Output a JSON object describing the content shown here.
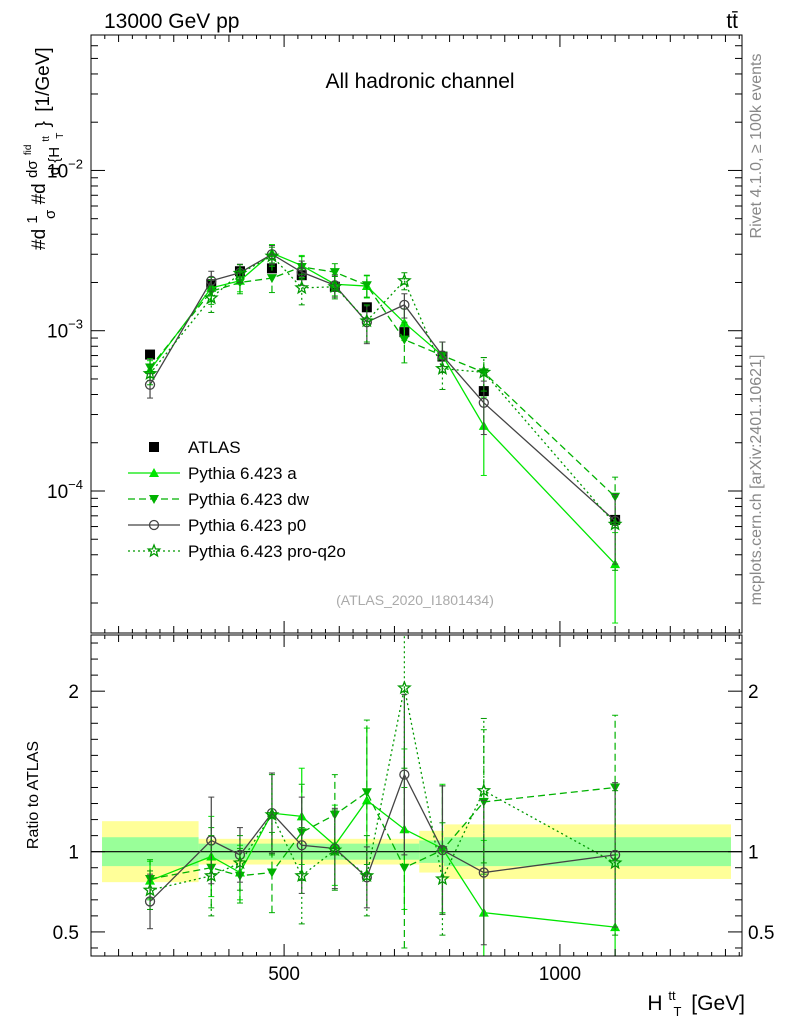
{
  "header": {
    "energy_label": "13000 GeV pp",
    "process_label": "tt̄"
  },
  "side": {
    "rivet_label": "Rivet 4.1.0, ≥ 100k events",
    "mcplots_label": "mcplots.cern.ch [arXiv:2401.10621]"
  },
  "chart_data": [
    {
      "type": "line",
      "panel": "main",
      "title": "All hadronic channel",
      "ylabel_parts": [
        "#d",
        "1",
        "σ",
        "#d",
        "dσ",
        "fid",
        "d {H",
        "tt",
        "T",
        "}",
        "[1/GeV]"
      ],
      "ylabel_text": "#d 1/σ #d dσ^fid / d {H_T^tt} [1/GeV]",
      "yscale": "log",
      "ylim": [
        1.3e-05,
        0.07
      ],
      "xlim": [
        150,
        1330
      ],
      "ytick_labels": [
        {
          "value": 0.01,
          "base": "10",
          "exp": "−2"
        },
        {
          "value": 0.001,
          "base": "10",
          "exp": "−3"
        },
        {
          "value": 0.0001,
          "base": "10",
          "exp": "−4"
        }
      ],
      "watermark": "(ATLAS_2020_I1801434)",
      "x": [
        257,
        368,
        420,
        478,
        532,
        592,
        650,
        718,
        787,
        862,
        1100
      ],
      "series": [
        {
          "name": "ATLAS",
          "style": "data",
          "color": "#000000",
          "values": [
            0.00071,
            0.00195,
            0.00235,
            0.00245,
            0.00222,
            0.00188,
            0.0014,
            0.00098,
            0.00069,
            0.00042,
            6.6e-05
          ]
        },
        {
          "name": "Pythia 6.423 a",
          "style": "solid",
          "marker": "triangle-up",
          "color": "#00e600",
          "values": [
            0.00057,
            0.00185,
            0.00205,
            0.00305,
            0.00255,
            0.00195,
            0.0019,
            0.00112,
            0.0007,
            0.000255,
            3.5e-05
          ],
          "err": [
            8e-05,
            0.0003,
            0.0003,
            0.0004,
            0.0004,
            0.0003,
            0.0003,
            0.00025,
            0.00015,
            0.00013,
            2e-05
          ]
        },
        {
          "name": "Pythia 6.423 dw",
          "style": "dashed",
          "marker": "triangle-down",
          "color": "#00b200",
          "values": [
            0.00059,
            0.00176,
            0.002,
            0.00213,
            0.0025,
            0.00232,
            0.00192,
            0.00088,
            0.0007,
            0.00055,
            9.2e-05
          ],
          "err": [
            8e-05,
            0.0003,
            0.0003,
            0.0004,
            0.0004,
            0.0003,
            0.0003,
            0.00025,
            0.00015,
            0.00013,
            3e-05
          ]
        },
        {
          "name": "Pythia 6.423 p0",
          "style": "solid",
          "marker": "circle-open",
          "color": "#444444",
          "values": [
            0.00046,
            0.00205,
            0.0023,
            0.003,
            0.00232,
            0.00192,
            0.00113,
            0.00145,
            0.0007,
            0.000355,
            6.5e-05
          ],
          "err": [
            8e-05,
            0.0003,
            0.0003,
            0.0004,
            0.0004,
            0.0003,
            0.0003,
            0.00025,
            0.00015,
            0.00013,
            3e-05
          ]
        },
        {
          "name": "Pythia 6.423 pro-q2o",
          "style": "dotted",
          "marker": "star-open",
          "color": "#009900",
          "values": [
            0.00054,
            0.0016,
            0.00228,
            0.00292,
            0.00185,
            0.00188,
            0.00115,
            0.00205,
            0.00058,
            0.00055,
            6.2e-05
          ],
          "err": [
            8e-05,
            0.0003,
            0.0003,
            0.0004,
            0.0004,
            0.0003,
            0.0003,
            0.00025,
            0.00015,
            0.00013,
            3e-05
          ]
        }
      ]
    },
    {
      "type": "line",
      "panel": "ratio",
      "ylabel": "Ratio to ATLAS",
      "xlabel_parts": [
        "H",
        "tt",
        "T",
        "[GeV]"
      ],
      "xlabel_text": "H_T^tt [GeV]",
      "xlim": [
        150,
        1330
      ],
      "ylim": [
        0.35,
        2.35
      ],
      "xticks": [
        500,
        1000
      ],
      "yticks": [
        0.5,
        1,
        2
      ],
      "ytick_labels": [
        "0.5",
        "1",
        "2"
      ],
      "xtick_labels": [
        "500",
        "1000"
      ],
      "reference_line": 1,
      "bands": [
        {
          "x0": 170,
          "x1": 345,
          "inner": [
            0.91,
            1.09
          ],
          "outer": [
            0.81,
            1.19
          ]
        },
        {
          "x0": 345,
          "x1": 745,
          "inner": [
            0.95,
            1.05
          ],
          "outer": [
            0.92,
            1.08
          ]
        },
        {
          "x0": 745,
          "x1": 790,
          "inner": [
            0.93,
            1.07
          ],
          "outer": [
            0.87,
            1.13
          ]
        },
        {
          "x0": 790,
          "x1": 1310,
          "inner": [
            0.91,
            1.09
          ],
          "outer": [
            0.83,
            1.17
          ]
        }
      ],
      "x": [
        257,
        368,
        420,
        478,
        532,
        592,
        650,
        718,
        787,
        862,
        1100
      ],
      "series": [
        {
          "name": "Pythia 6.423 a",
          "style": "solid",
          "marker": "triangle-up",
          "color": "#00e600",
          "values": [
            0.82,
            0.97,
            0.87,
            1.24,
            1.22,
            1.04,
            1.32,
            1.14,
            1.02,
            0.62,
            0.53
          ],
          "err": [
            0.12,
            0.25,
            0.17,
            0.25,
            0.3,
            0.25,
            0.45,
            0.5,
            0.4,
            0.45,
            0.45
          ]
        },
        {
          "name": "Pythia 6.423 dw",
          "style": "dashed",
          "marker": "triangle-down",
          "color": "#00b200",
          "values": [
            0.83,
            0.9,
            0.85,
            0.87,
            1.12,
            1.23,
            1.37,
            0.9,
            1.01,
            1.31,
            1.4
          ],
          "err": [
            0.12,
            0.25,
            0.17,
            0.25,
            0.3,
            0.25,
            0.45,
            0.5,
            0.4,
            0.45,
            0.45
          ]
        },
        {
          "name": "Pythia 6.423 p0",
          "style": "solid",
          "marker": "circle-open",
          "color": "#444444",
          "values": [
            0.69,
            1.07,
            0.98,
            1.24,
            1.04,
            1.02,
            0.84,
            1.48,
            1.01,
            0.87,
            0.98
          ],
          "err": [
            0.17,
            0.27,
            0.17,
            0.25,
            0.3,
            0.25,
            0.19,
            0.5,
            0.4,
            0.45,
            0.45
          ]
        },
        {
          "name": "Pythia 6.423 pro-q2o",
          "style": "dotted",
          "marker": "star-open",
          "color": "#009900",
          "values": [
            0.76,
            0.85,
            0.93,
            1.23,
            0.85,
            1.01,
            0.85,
            2.02,
            0.83,
            1.38,
            0.93
          ],
          "err": [
            0.12,
            0.25,
            0.17,
            0.25,
            0.3,
            0.25,
            0.25,
            0.5,
            0.35,
            0.45,
            0.45
          ]
        }
      ]
    }
  ]
}
